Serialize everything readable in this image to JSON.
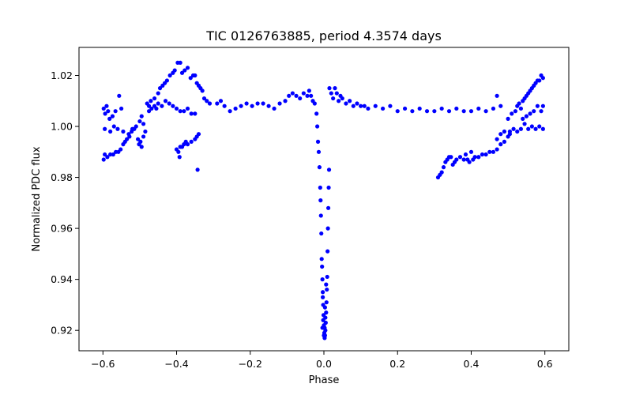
{
  "chart_data": {
    "type": "scatter",
    "title": "TIC 0126763885, period 4.3574 days",
    "xlabel": "Phase",
    "ylabel": "Normalized PDC flux",
    "xlim": [
      -0.665,
      0.665
    ],
    "ylim": [
      0.912,
      1.031
    ],
    "xticks": [
      -0.6,
      -0.4,
      -0.2,
      0.0,
      0.2,
      0.4,
      0.6
    ],
    "xtick_labels": [
      "−0.6",
      "−0.4",
      "−0.2",
      "0.0",
      "0.2",
      "0.4",
      "0.6"
    ],
    "yticks": [
      0.92,
      0.94,
      0.96,
      0.98,
      1.0,
      1.02
    ],
    "ytick_labels": [
      "0.92",
      "0.94",
      "0.96",
      "0.98",
      "1.00",
      "1.02"
    ],
    "marker_color": "#0000ff",
    "series": [
      {
        "name": "flux",
        "points": [
          [
            -0.598,
            0.987
          ],
          [
            -0.595,
            0.989
          ],
          [
            -0.588,
            0.988
          ],
          [
            -0.58,
            0.989
          ],
          [
            -0.572,
            0.989
          ],
          [
            -0.565,
            0.99
          ],
          [
            -0.558,
            0.99
          ],
          [
            -0.552,
            0.991
          ],
          [
            -0.545,
            0.993
          ],
          [
            -0.54,
            0.994
          ],
          [
            -0.535,
            0.995
          ],
          [
            -0.528,
            0.996
          ],
          [
            -0.522,
            0.998
          ],
          [
            -0.515,
            0.999
          ],
          [
            -0.598,
            1.007
          ],
          [
            -0.594,
            1.005
          ],
          [
            -0.59,
            1.008
          ],
          [
            -0.586,
            1.006
          ],
          [
            -0.582,
            1.003
          ],
          [
            -0.574,
            1.004
          ],
          [
            -0.566,
            1.006
          ],
          [
            -0.556,
            1.012
          ],
          [
            -0.55,
            1.007
          ],
          [
            -0.505,
            0.995
          ],
          [
            -0.502,
            0.993
          ],
          [
            -0.498,
            0.994
          ],
          [
            -0.495,
            0.992
          ],
          [
            -0.49,
            0.996
          ],
          [
            -0.485,
            0.998
          ],
          [
            -0.495,
            1.004
          ],
          [
            -0.48,
            1.009
          ],
          [
            -0.475,
            1.008
          ],
          [
            -0.47,
            1.01
          ],
          [
            -0.46,
            1.011
          ],
          [
            -0.455,
            1.007
          ],
          [
            -0.45,
            1.013
          ],
          [
            -0.445,
            1.015
          ],
          [
            -0.438,
            1.016
          ],
          [
            -0.432,
            1.017
          ],
          [
            -0.426,
            1.018
          ],
          [
            -0.418,
            1.02
          ],
          [
            -0.41,
            1.021
          ],
          [
            -0.405,
            1.022
          ],
          [
            -0.397,
            1.025
          ],
          [
            -0.39,
            1.025
          ],
          [
            -0.385,
            1.021
          ],
          [
            -0.378,
            1.022
          ],
          [
            -0.37,
            1.023
          ],
          [
            -0.362,
            1.019
          ],
          [
            -0.355,
            1.02
          ],
          [
            -0.35,
            1.02
          ],
          [
            -0.345,
            1.017
          ],
          [
            -0.34,
            1.016
          ],
          [
            -0.335,
            1.015
          ],
          [
            -0.33,
            1.014
          ],
          [
            -0.325,
            1.011
          ],
          [
            -0.318,
            1.01
          ],
          [
            -0.31,
            1.009
          ],
          [
            -0.475,
            1.006
          ],
          [
            -0.468,
            1.007
          ],
          [
            -0.46,
            1.008
          ],
          [
            -0.45,
            1.009
          ],
          [
            -0.44,
            1.008
          ],
          [
            -0.43,
            1.01
          ],
          [
            -0.42,
            1.009
          ],
          [
            -0.41,
            1.008
          ],
          [
            -0.4,
            1.007
          ],
          [
            -0.39,
            1.006
          ],
          [
            -0.38,
            1.006
          ],
          [
            -0.37,
            1.007
          ],
          [
            -0.36,
            1.005
          ],
          [
            -0.35,
            1.005
          ],
          [
            -0.4,
            0.991
          ],
          [
            -0.395,
            0.99
          ],
          [
            -0.39,
            0.992
          ],
          [
            -0.385,
            0.992
          ],
          [
            -0.38,
            0.993
          ],
          [
            -0.375,
            0.994
          ],
          [
            -0.37,
            0.993
          ],
          [
            -0.36,
            0.994
          ],
          [
            -0.35,
            0.995
          ],
          [
            -0.345,
            0.996
          ],
          [
            -0.34,
            0.997
          ],
          [
            -0.392,
            0.988
          ],
          [
            -0.343,
            0.983
          ],
          [
            -0.29,
            1.009
          ],
          [
            -0.28,
            1.01
          ],
          [
            -0.27,
            1.008
          ],
          [
            -0.255,
            1.006
          ],
          [
            -0.24,
            1.007
          ],
          [
            -0.225,
            1.008
          ],
          [
            -0.21,
            1.009
          ],
          [
            -0.195,
            1.008
          ],
          [
            -0.18,
            1.009
          ],
          [
            -0.165,
            1.009
          ],
          [
            -0.15,
            1.008
          ],
          [
            -0.135,
            1.007
          ],
          [
            -0.12,
            1.009
          ],
          [
            -0.105,
            1.01
          ],
          [
            -0.095,
            1.012
          ],
          [
            -0.085,
            1.013
          ],
          [
            -0.075,
            1.012
          ],
          [
            -0.065,
            1.011
          ],
          [
            -0.055,
            1.013
          ],
          [
            -0.045,
            1.012
          ],
          [
            -0.04,
            1.014
          ],
          [
            -0.035,
            1.012
          ],
          [
            -0.03,
            1.01
          ],
          [
            -0.025,
            1.009
          ],
          [
            -0.02,
            1.005
          ],
          [
            -0.018,
            1.0
          ],
          [
            -0.016,
            0.994
          ],
          [
            -0.014,
            0.99
          ],
          [
            -0.012,
            0.984
          ],
          [
            -0.01,
            0.976
          ],
          [
            -0.009,
            0.971
          ],
          [
            -0.008,
            0.965
          ],
          [
            -0.007,
            0.958
          ],
          [
            -0.006,
            0.948
          ],
          [
            -0.005,
            0.945
          ],
          [
            -0.004,
            0.94
          ],
          [
            -0.003,
            0.935
          ],
          [
            -0.002,
            0.93
          ],
          [
            -0.001,
            0.926
          ],
          [
            0.0,
            0.922
          ],
          [
            0.001,
            0.919
          ],
          [
            0.002,
            0.917
          ],
          [
            0.003,
            0.918
          ],
          [
            0.004,
            0.92
          ],
          [
            0.005,
            0.923
          ],
          [
            0.006,
            0.927
          ],
          [
            0.007,
            0.931
          ],
          [
            0.008,
            0.936
          ],
          [
            0.009,
            0.941
          ],
          [
            0.01,
            0.951
          ],
          [
            0.011,
            0.96
          ],
          [
            0.012,
            0.968
          ],
          [
            0.013,
            0.976
          ],
          [
            0.014,
            0.983
          ],
          [
            -0.004,
            0.921
          ],
          [
            -0.002,
            0.924
          ],
          [
            0.0,
            0.918
          ],
          [
            0.002,
            0.921
          ],
          [
            0.004,
            0.925
          ],
          [
            0.003,
            0.929
          ],
          [
            -0.003,
            0.933
          ],
          [
            0.006,
            0.938
          ],
          [
            0.015,
            1.015
          ],
          [
            0.02,
            1.013
          ],
          [
            0.025,
            1.011
          ],
          [
            0.03,
            1.015
          ],
          [
            0.035,
            1.013
          ],
          [
            0.04,
            1.01
          ],
          [
            0.045,
            1.012
          ],
          [
            0.05,
            1.011
          ],
          [
            0.06,
            1.009
          ],
          [
            0.07,
            1.01
          ],
          [
            0.08,
            1.008
          ],
          [
            0.09,
            1.009
          ],
          [
            0.1,
            1.008
          ],
          [
            0.11,
            1.008
          ],
          [
            0.12,
            1.007
          ],
          [
            0.14,
            1.008
          ],
          [
            0.16,
            1.007
          ],
          [
            0.18,
            1.008
          ],
          [
            0.2,
            1.006
          ],
          [
            0.22,
            1.007
          ],
          [
            0.24,
            1.006
          ],
          [
            0.26,
            1.007
          ],
          [
            0.28,
            1.006
          ],
          [
            0.3,
            1.006
          ],
          [
            0.32,
            1.007
          ],
          [
            0.34,
            1.006
          ],
          [
            0.36,
            1.007
          ],
          [
            0.38,
            1.006
          ],
          [
            0.4,
            1.006
          ],
          [
            0.42,
            1.007
          ],
          [
            0.44,
            1.006
          ],
          [
            0.46,
            1.007
          ],
          [
            0.47,
            1.012
          ],
          [
            0.48,
            1.008
          ],
          [
            0.31,
            0.98
          ],
          [
            0.315,
            0.981
          ],
          [
            0.32,
            0.982
          ],
          [
            0.325,
            0.984
          ],
          [
            0.33,
            0.986
          ],
          [
            0.335,
            0.987
          ],
          [
            0.34,
            0.988
          ],
          [
            0.345,
            0.988
          ],
          [
            0.35,
            0.985
          ],
          [
            0.355,
            0.986
          ],
          [
            0.36,
            0.987
          ],
          [
            0.37,
            0.988
          ],
          [
            0.38,
            0.987
          ],
          [
            0.385,
            0.989
          ],
          [
            0.39,
            0.987
          ],
          [
            0.395,
            0.986
          ],
          [
            0.4,
            0.99
          ],
          [
            0.405,
            0.987
          ],
          [
            0.41,
            0.988
          ],
          [
            0.42,
            0.988
          ],
          [
            0.43,
            0.989
          ],
          [
            0.44,
            0.989
          ],
          [
            0.45,
            0.99
          ],
          [
            0.46,
            0.99
          ],
          [
            0.47,
            0.991
          ],
          [
            0.48,
            0.993
          ],
          [
            0.49,
            0.994
          ],
          [
            0.5,
            0.996
          ],
          [
            0.505,
            0.997
          ],
          [
            0.47,
            0.995
          ],
          [
            0.48,
            0.997
          ],
          [
            0.49,
            0.998
          ],
          [
            0.5,
            1.003
          ],
          [
            0.51,
            1.005
          ],
          [
            0.52,
            1.006
          ],
          [
            0.525,
            1.008
          ],
          [
            0.53,
            1.009
          ],
          [
            0.535,
            1.007
          ],
          [
            0.54,
            1.01
          ],
          [
            0.545,
            1.011
          ],
          [
            0.55,
            1.012
          ],
          [
            0.555,
            1.013
          ],
          [
            0.56,
            1.014
          ],
          [
            0.565,
            1.015
          ],
          [
            0.57,
            1.016
          ],
          [
            0.575,
            1.017
          ],
          [
            0.58,
            1.018
          ],
          [
            0.585,
            1.018
          ],
          [
            0.59,
            1.02
          ],
          [
            0.595,
            1.019
          ],
          [
            0.54,
            1.003
          ],
          [
            0.55,
            1.004
          ],
          [
            0.56,
            1.005
          ],
          [
            0.57,
            1.006
          ],
          [
            0.58,
            1.008
          ],
          [
            0.59,
            1.006
          ],
          [
            0.595,
            1.008
          ],
          [
            0.505,
            0.998
          ],
          [
            0.515,
            0.999
          ],
          [
            0.525,
            0.998
          ],
          [
            0.535,
            0.999
          ],
          [
            0.545,
            1.001
          ],
          [
            0.555,
            0.999
          ],
          [
            0.565,
            1.0
          ],
          [
            0.575,
            0.999
          ],
          [
            0.585,
            1.0
          ],
          [
            0.595,
            0.999
          ],
          [
            -0.595,
            0.999
          ],
          [
            -0.58,
            0.998
          ],
          [
            -0.57,
            1.0
          ],
          [
            -0.56,
            0.999
          ],
          [
            -0.545,
            0.998
          ],
          [
            -0.53,
            0.997
          ],
          [
            -0.52,
            0.999
          ],
          [
            -0.51,
            1.0
          ],
          [
            -0.5,
            1.002
          ],
          [
            -0.49,
            1.001
          ]
        ]
      }
    ]
  }
}
